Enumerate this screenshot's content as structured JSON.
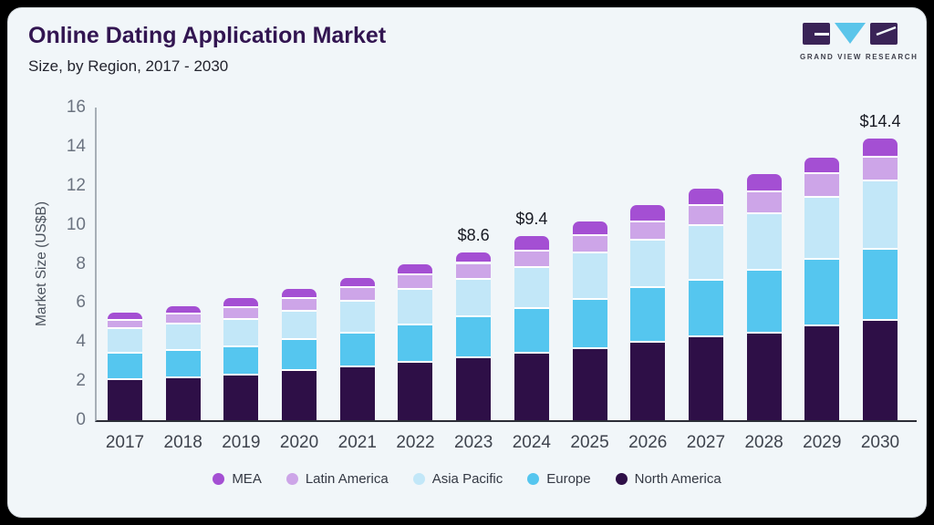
{
  "page": {
    "background": "#000000",
    "card_background": "#f1f6f9"
  },
  "header": {
    "title": "Online Dating Application Market",
    "subtitle": "Size, by Region, 2017 - 2030"
  },
  "logo": {
    "caption": "GRAND VIEW RESEARCH",
    "block_color": "#3a2357",
    "triangle_color": "#5bc5ea"
  },
  "chart_data": {
    "type": "bar",
    "stacked": true,
    "title": "Online Dating Application Market Size, by Region, 2017 - 2030",
    "xlabel": "",
    "ylabel": "Market Size (US$B)",
    "ylim": [
      0,
      16
    ],
    "ytick_step": 2,
    "grid": false,
    "legend_position": "bottom",
    "legend_order": [
      "MEA",
      "Latin America",
      "Asia Pacific",
      "Europe",
      "North America"
    ],
    "categories": [
      "2017",
      "2018",
      "2019",
      "2020",
      "2021",
      "2022",
      "2023",
      "2024",
      "2025",
      "2026",
      "2027",
      "2028",
      "2029",
      "2030"
    ],
    "series": [
      {
        "name": "North America",
        "color": "#2e0f47",
        "values": [
          2.05,
          2.15,
          2.3,
          2.5,
          2.7,
          2.95,
          3.15,
          3.4,
          3.65,
          3.95,
          4.25,
          4.45,
          4.8,
          5.1
        ]
      },
      {
        "name": "Europe",
        "color": "#55c6ef",
        "values": [
          1.35,
          1.4,
          1.45,
          1.6,
          1.75,
          1.9,
          2.1,
          2.3,
          2.5,
          2.8,
          2.9,
          3.2,
          3.4,
          3.6
        ]
      },
      {
        "name": "Asia Pacific",
        "color": "#c2e7f8",
        "values": [
          1.25,
          1.35,
          1.4,
          1.45,
          1.6,
          1.8,
          1.95,
          2.1,
          2.4,
          2.45,
          2.8,
          2.9,
          3.2,
          3.5
        ]
      },
      {
        "name": "Latin America",
        "color": "#cda5e8",
        "values": [
          0.45,
          0.5,
          0.6,
          0.65,
          0.7,
          0.75,
          0.8,
          0.85,
          0.85,
          0.9,
          1.0,
          1.1,
          1.2,
          1.25
        ]
      },
      {
        "name": "MEA",
        "color": "#a44fd3",
        "values": [
          0.4,
          0.45,
          0.5,
          0.5,
          0.55,
          0.6,
          0.6,
          0.75,
          0.75,
          0.9,
          0.9,
          0.95,
          0.85,
          0.95
        ]
      }
    ],
    "totals": [
      5.5,
      5.85,
      6.25,
      6.7,
      7.3,
      8.0,
      8.6,
      9.4,
      10.15,
      11.0,
      11.85,
      12.6,
      13.45,
      14.4
    ],
    "annotations": [
      {
        "category": "2023",
        "label": "$8.6"
      },
      {
        "category": "2024",
        "label": "$9.4"
      },
      {
        "category": "2030",
        "label": "$14.4"
      }
    ]
  }
}
